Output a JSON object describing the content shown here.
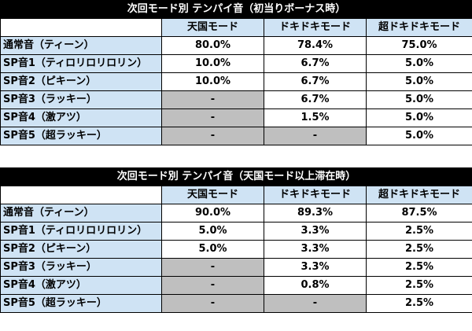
{
  "tables": [
    {
      "title": "次回モード別 テンパイ音（初当りボーナス時）",
      "columns": [
        "天国モード",
        "ドキドキモード",
        "超ドキドキモード"
      ],
      "rows": [
        {
          "label": "通常音（ティーン）",
          "values": [
            "80.0%",
            "78.4%",
            "75.0%"
          ]
        },
        {
          "label": "SP音1（ティロリロリロリン）",
          "values": [
            "10.0%",
            "6.7%",
            "5.0%"
          ]
        },
        {
          "label": "SP音2（ピキーン）",
          "values": [
            "10.0%",
            "6.7%",
            "5.0%"
          ]
        },
        {
          "label": "SP音3（ラッキー）",
          "values": [
            "-",
            "6.7%",
            "5.0%"
          ]
        },
        {
          "label": "SP音4（激アツ）",
          "values": [
            "-",
            "1.5%",
            "5.0%"
          ]
        },
        {
          "label": "SP音5（超ラッキー）",
          "values": [
            "-",
            "-",
            "5.0%"
          ]
        }
      ]
    },
    {
      "title": "次回モード別 テンパイ音（天国モード以上滞在時）",
      "columns": [
        "天国モード",
        "ドキドキモード",
        "超ドキドキモード"
      ],
      "rows": [
        {
          "label": "通常音（ティーン）",
          "values": [
            "90.0%",
            "89.3%",
            "87.5%"
          ]
        },
        {
          "label": "SP音1（ティロリロリロリン）",
          "values": [
            "5.0%",
            "3.3%",
            "2.5%"
          ]
        },
        {
          "label": "SP音2（ピキーン）",
          "values": [
            "5.0%",
            "3.3%",
            "2.5%"
          ]
        },
        {
          "label": "SP音3（ラッキー）",
          "values": [
            "-",
            "3.3%",
            "2.5%"
          ]
        },
        {
          "label": "SP音4（激アツ）",
          "values": [
            "-",
            "0.8%",
            "2.5%"
          ]
        },
        {
          "label": "SP音5（超ラッキー）",
          "values": [
            "-",
            "-",
            "2.5%"
          ]
        }
      ]
    }
  ],
  "colors": {
    "title_bg": "#000000",
    "header_bg": "#cfe3f4",
    "na_bg": "#bfbfbf"
  }
}
